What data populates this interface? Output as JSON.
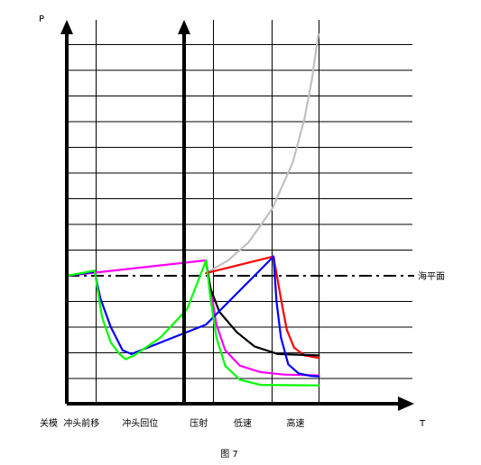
{
  "chart_data": {
    "type": "line",
    "title": "",
    "caption": "图 7",
    "ylabel": "P",
    "xlabel": "T",
    "ref_line_label": "海平面",
    "phases": [
      {
        "label": "关模",
        "start": 0,
        "end": 0
      },
      {
        "label": "冲头前移",
        "start": 0,
        "end": 1
      },
      {
        "label": "冲头回位",
        "start": 1,
        "end": 4
      },
      {
        "label": "压射",
        "start": 4,
        "end": 5
      },
      {
        "label": "低速",
        "start": 5,
        "end": 7
      },
      {
        "label": "高速",
        "start": 7,
        "end": 8.6
      }
    ],
    "xlim": [
      0,
      9.5
    ],
    "ylim": [
      -4.7,
      10
    ],
    "grid": true,
    "reference_line": {
      "y": 0,
      "style": "dash-dot"
    },
    "series": [
      {
        "color": "#c0c0c0",
        "points": [
          [
            4.75,
            0.1
          ],
          [
            5.5,
            0.6
          ],
          [
            6.2,
            1.3
          ],
          [
            7,
            2.6
          ],
          [
            7.7,
            4.4
          ],
          [
            8.1,
            6.1
          ],
          [
            8.35,
            7.6
          ],
          [
            8.5,
            8.8
          ],
          [
            8.58,
            9.4
          ]
        ]
      },
      {
        "color": "#ff00ff",
        "points": [
          [
            0,
            0
          ],
          [
            4.75,
            0.6
          ],
          [
            4.9,
            -0.5
          ],
          [
            5.1,
            -1.9
          ],
          [
            5.4,
            -2.9
          ],
          [
            5.9,
            -3.5
          ],
          [
            6.6,
            -3.75
          ],
          [
            7.4,
            -3.85
          ],
          [
            8.6,
            -3.88
          ]
        ]
      },
      {
        "color": "#ff0000",
        "points": [
          [
            4.75,
            0.1
          ],
          [
            7.05,
            0.75
          ],
          [
            7.3,
            -0.9
          ],
          [
            7.5,
            -2.1
          ],
          [
            7.75,
            -2.8
          ],
          [
            8.1,
            -3.1
          ],
          [
            8.6,
            -3.2
          ]
        ]
      },
      {
        "color": "#000000",
        "points": [
          [
            4.75,
            0.5
          ],
          [
            4.9,
            -0.5
          ],
          [
            5.2,
            -1.4
          ],
          [
            5.8,
            -2.2
          ],
          [
            6.4,
            -2.75
          ],
          [
            7.2,
            -3.05
          ],
          [
            8.6,
            -3.1
          ]
        ]
      },
      {
        "color": "#0000ff",
        "points": [
          [
            0,
            0
          ],
          [
            0.95,
            0.15
          ],
          [
            1.15,
            -0.9
          ],
          [
            1.5,
            -2
          ],
          [
            1.9,
            -2.9
          ],
          [
            2.2,
            -3.05
          ],
          [
            4.75,
            -1.9
          ],
          [
            7.05,
            0.75
          ],
          [
            7.15,
            -1
          ],
          [
            7.3,
            -2.4
          ],
          [
            7.55,
            -3.45
          ],
          [
            7.9,
            -3.8
          ],
          [
            8.3,
            -3.9
          ],
          [
            8.6,
            -3.92
          ]
        ]
      },
      {
        "color": "#00ff00",
        "points": [
          [
            0,
            0
          ],
          [
            0.95,
            0.2
          ],
          [
            1.2,
            -1.6
          ],
          [
            1.5,
            -2.6
          ],
          [
            1.8,
            -3.05
          ],
          [
            2.0,
            -3.25
          ],
          [
            2.3,
            -3.1
          ],
          [
            3.2,
            -2.4
          ],
          [
            4.1,
            -1.3
          ],
          [
            4.75,
            0.6
          ],
          [
            4.9,
            -0.9
          ],
          [
            5.1,
            -2.4
          ],
          [
            5.4,
            -3.5
          ],
          [
            5.9,
            -4.05
          ],
          [
            6.6,
            -4.25
          ],
          [
            8.6,
            -4.27
          ]
        ]
      }
    ]
  }
}
